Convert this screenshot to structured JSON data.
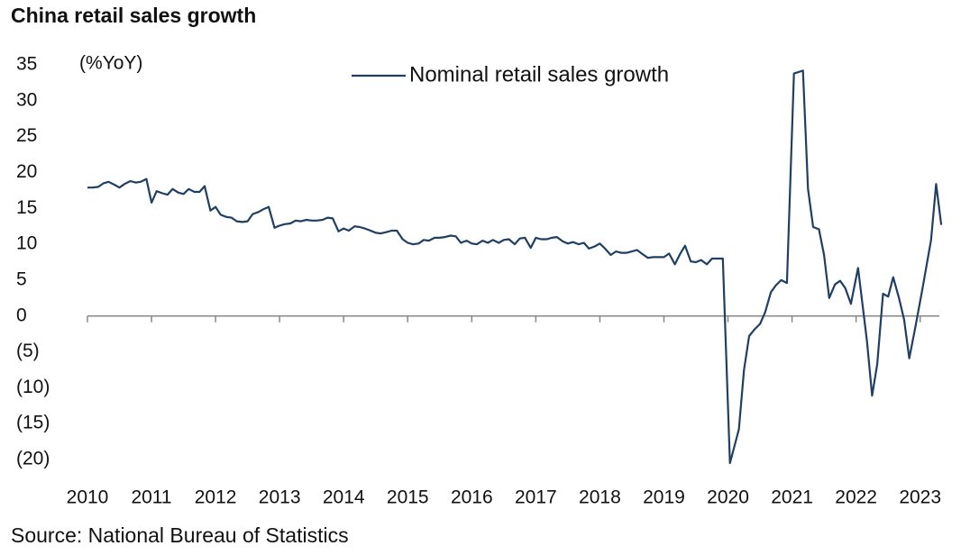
{
  "chart_data": {
    "type": "line",
    "title": "China retail sales growth",
    "y_axis_label": "(%YoY)",
    "source": "Source: National Bureau of Statistics",
    "legend_position": "top",
    "x": [
      2010.0,
      2010.08,
      2010.17,
      2010.25,
      2010.33,
      2010.42,
      2010.5,
      2010.58,
      2010.67,
      2010.75,
      2010.83,
      2010.92,
      2011.0,
      2011.08,
      2011.17,
      2011.25,
      2011.33,
      2011.42,
      2011.5,
      2011.58,
      2011.67,
      2011.75,
      2011.83,
      2011.92,
      2012.0,
      2012.08,
      2012.17,
      2012.25,
      2012.33,
      2012.42,
      2012.5,
      2012.58,
      2012.67,
      2012.75,
      2012.83,
      2012.92,
      2013.0,
      2013.08,
      2013.17,
      2013.25,
      2013.33,
      2013.42,
      2013.5,
      2013.58,
      2013.67,
      2013.75,
      2013.83,
      2013.92,
      2014.0,
      2014.08,
      2014.17,
      2014.25,
      2014.33,
      2014.42,
      2014.5,
      2014.58,
      2014.67,
      2014.75,
      2014.83,
      2014.92,
      2015.0,
      2015.08,
      2015.17,
      2015.25,
      2015.33,
      2015.42,
      2015.5,
      2015.58,
      2015.67,
      2015.75,
      2015.83,
      2015.92,
      2016.0,
      2016.08,
      2016.17,
      2016.25,
      2016.33,
      2016.42,
      2016.5,
      2016.58,
      2016.67,
      2016.75,
      2016.83,
      2016.92,
      2017.0,
      2017.08,
      2017.17,
      2017.25,
      2017.33,
      2017.42,
      2017.5,
      2017.58,
      2017.67,
      2017.75,
      2017.83,
      2017.92,
      2018.0,
      2018.08,
      2018.17,
      2018.25,
      2018.33,
      2018.42,
      2018.5,
      2018.58,
      2018.67,
      2018.75,
      2018.83,
      2018.92,
      2019.0,
      2019.08,
      2019.17,
      2019.25,
      2019.33,
      2019.42,
      2019.5,
      2019.58,
      2019.67,
      2019.75,
      2019.83,
      2019.92,
      2020.03,
      2020.17,
      2020.25,
      2020.33,
      2020.42,
      2020.5,
      2020.58,
      2020.67,
      2020.75,
      2020.83,
      2020.92,
      2021.03,
      2021.17,
      2021.25,
      2021.33,
      2021.42,
      2021.5,
      2021.58,
      2021.67,
      2021.75,
      2021.83,
      2021.92,
      2022.03,
      2022.17,
      2022.25,
      2022.33,
      2022.42,
      2022.5,
      2022.58,
      2022.67,
      2022.75,
      2022.83,
      2022.92,
      2023.03,
      2023.17,
      2023.25,
      2023.33
    ],
    "series": [
      {
        "name": "Nominal retail sales growth",
        "color": "#1f3f63",
        "values": [
          17.9,
          17.9,
          18.0,
          18.5,
          18.7,
          18.3,
          17.9,
          18.4,
          18.8,
          18.6,
          18.7,
          19.1,
          15.8,
          17.4,
          17.1,
          16.9,
          17.7,
          17.2,
          17.0,
          17.7,
          17.3,
          17.3,
          18.1,
          14.7,
          15.2,
          14.1,
          13.8,
          13.7,
          13.2,
          13.1,
          13.2,
          14.2,
          14.5,
          14.9,
          15.2,
          12.3,
          12.6,
          12.8,
          12.9,
          13.3,
          13.2,
          13.4,
          13.3,
          13.3,
          13.4,
          13.7,
          13.6,
          11.8,
          12.2,
          11.9,
          12.5,
          12.4,
          12.2,
          11.9,
          11.6,
          11.5,
          11.7,
          11.9,
          11.9,
          10.7,
          10.2,
          10.0,
          10.1,
          10.6,
          10.5,
          10.9,
          10.9,
          11.0,
          11.2,
          11.1,
          10.2,
          10.5,
          10.1,
          10.0,
          10.5,
          10.2,
          10.6,
          10.2,
          10.6,
          10.7,
          10.0,
          10.8,
          10.9,
          9.5,
          10.9,
          10.7,
          10.7,
          10.9,
          11.0,
          10.4,
          10.1,
          10.3,
          10.0,
          10.2,
          9.4,
          9.7,
          10.1,
          9.4,
          8.5,
          9.0,
          8.8,
          8.8,
          9.0,
          9.2,
          8.6,
          8.1,
          8.2,
          8.2,
          8.2,
          8.7,
          7.2,
          8.6,
          9.8,
          7.6,
          7.5,
          7.8,
          7.2,
          8.0,
          8.0,
          8.0,
          -20.5,
          -15.8,
          -7.5,
          -2.8,
          -1.8,
          -1.1,
          0.5,
          3.3,
          4.3,
          5.0,
          4.6,
          33.8,
          34.2,
          17.7,
          12.4,
          12.1,
          8.5,
          2.5,
          4.4,
          4.9,
          3.9,
          1.7,
          6.7,
          -3.5,
          -11.1,
          -6.7,
          3.1,
          2.7,
          5.4,
          2.5,
          -0.5,
          -5.9,
          -1.8,
          3.5,
          10.6,
          18.4,
          12.7
        ]
      }
    ],
    "xlim": [
      2010,
      2023.3
    ],
    "xticks": [
      2010,
      2011,
      2012,
      2013,
      2014,
      2015,
      2016,
      2017,
      2018,
      2019,
      2020,
      2021,
      2022,
      2023
    ],
    "ylim": [
      -20,
      35
    ],
    "yticks": [
      {
        "value": -20,
        "label": "(20)"
      },
      {
        "value": -15,
        "label": "(15)"
      },
      {
        "value": -10,
        "label": "(10)"
      },
      {
        "value": -5,
        "label": "(5)"
      },
      0,
      5,
      10,
      15,
      20,
      25,
      30,
      35
    ],
    "grid": false
  }
}
